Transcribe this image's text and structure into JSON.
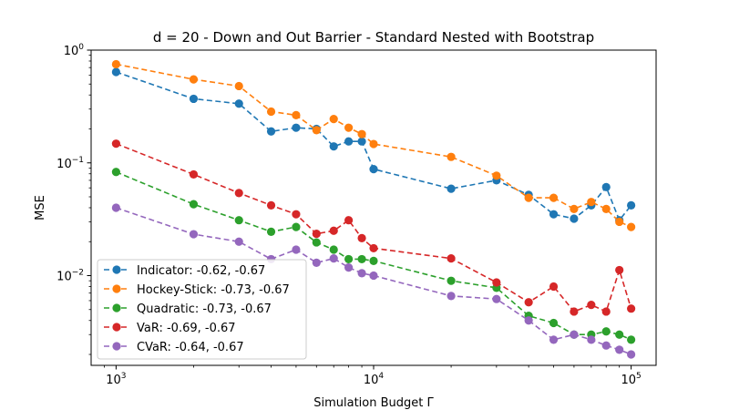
{
  "chart_data": {
    "type": "line",
    "title": "d = 20 - Down and Out Barrier - Standard Nested with Bootstrap",
    "xlabel": "Simulation Budget Γ",
    "ylabel": "MSE",
    "xscale": "log",
    "yscale": "log",
    "xlim": [
      800,
      125000
    ],
    "ylim": [
      0.0016,
      1.0
    ],
    "x_ticks": [
      {
        "value": 1000,
        "base": "10",
        "exp": "3"
      },
      {
        "value": 10000,
        "base": "10",
        "exp": "4"
      },
      {
        "value": 100000,
        "base": "10",
        "exp": "5"
      }
    ],
    "y_ticks": [
      {
        "value": 0.01,
        "base": "10",
        "exp": "−2"
      },
      {
        "value": 0.1,
        "base": "10",
        "exp": "−1"
      },
      {
        "value": 1.0,
        "base": "10",
        "exp": "0"
      }
    ],
    "legend_position": "lower-left",
    "grid": false,
    "x": [
      1000,
      2000,
      3000,
      4000,
      5000,
      6000,
      7000,
      8000,
      9000,
      10000,
      20000,
      30000,
      40000,
      50000,
      60000,
      70000,
      80000,
      90000,
      100000
    ],
    "series": [
      {
        "name": "Indicator: -0.62, -0.67",
        "color": "#1f77b4",
        "values": [
          0.64,
          0.37,
          0.335,
          0.19,
          0.205,
          0.2,
          0.14,
          0.155,
          0.155,
          0.088,
          0.059,
          0.07,
          0.052,
          0.035,
          0.032,
          0.042,
          0.061,
          0.031,
          0.042
        ]
      },
      {
        "name": "Hockey-Stick: -0.73, -0.67",
        "color": "#ff7f0e",
        "values": [
          0.75,
          0.55,
          0.48,
          0.285,
          0.265,
          0.195,
          0.245,
          0.205,
          0.18,
          0.147,
          0.113,
          0.077,
          0.049,
          0.049,
          0.039,
          0.045,
          0.039,
          0.03,
          0.027
        ]
      },
      {
        "name": "Quadratic: -0.73, -0.67",
        "color": "#2ca02c",
        "values": [
          0.083,
          0.043,
          0.031,
          0.0245,
          0.027,
          0.0197,
          0.017,
          0.014,
          0.014,
          0.0135,
          0.009,
          0.0078,
          0.0044,
          0.0038,
          0.003,
          0.003,
          0.0032,
          0.003,
          0.0027
        ]
      },
      {
        "name": "VaR: -0.69, -0.67",
        "color": "#d62728",
        "values": [
          0.148,
          0.079,
          0.054,
          0.042,
          0.035,
          0.0235,
          0.025,
          0.031,
          0.0215,
          0.0175,
          0.0142,
          0.0087,
          0.0058,
          0.008,
          0.0048,
          0.0055,
          0.0048,
          0.0112,
          0.0051
        ]
      },
      {
        "name": "CVaR: -0.64, -0.67",
        "color": "#9467bd",
        "values": [
          0.04,
          0.0233,
          0.02,
          0.014,
          0.017,
          0.013,
          0.0142,
          0.0118,
          0.0105,
          0.01,
          0.0066,
          0.0062,
          0.004,
          0.0027,
          0.003,
          0.0027,
          0.0024,
          0.0022,
          0.002
        ]
      }
    ]
  }
}
